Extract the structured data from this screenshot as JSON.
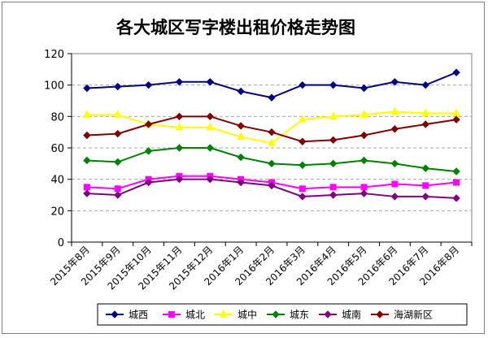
{
  "chart_data": {
    "type": "line",
    "title": "各大城区写字楼出租价格走势图",
    "xlabel": "",
    "ylabel": "",
    "ylim": [
      0,
      120
    ],
    "yticks": [
      0,
      20,
      40,
      60,
      80,
      100,
      120
    ],
    "grid": true,
    "legend_position": "bottom",
    "categories": [
      "2015年8月",
      "2015年9月",
      "2015年10月",
      "2015年11月",
      "2015年12月",
      "2016年1月",
      "2016年2月",
      "2016年3月",
      "2016年4月",
      "2016年5月",
      "2016年6月",
      "2016年7月",
      "2016年8月"
    ],
    "series": [
      {
        "name": "城西",
        "color": "#000080",
        "marker": "diamond",
        "values": [
          98,
          99,
          100,
          102,
          102,
          96,
          92,
          100,
          100,
          98,
          102,
          100,
          108
        ]
      },
      {
        "name": "城北",
        "color": "#ff00ff",
        "marker": "square",
        "values": [
          35,
          34,
          40,
          42,
          42,
          40,
          38,
          34,
          35,
          35,
          37,
          36,
          38
        ]
      },
      {
        "name": "城中",
        "color": "#ffff00",
        "marker": "triangle",
        "values": [
          81,
          81,
          75,
          73,
          73,
          67,
          63,
          78,
          80,
          81,
          83,
          82,
          82
        ]
      },
      {
        "name": "城东",
        "color": "#008000",
        "marker": "diamond",
        "values": [
          52,
          51,
          58,
          60,
          60,
          54,
          50,
          49,
          50,
          52,
          50,
          47,
          45
        ]
      },
      {
        "name": "城南",
        "color": "#800080",
        "marker": "diamond",
        "values": [
          31,
          30,
          38,
          40,
          40,
          38,
          36,
          29,
          30,
          31,
          29,
          29,
          28
        ]
      },
      {
        "name": "海湖新区",
        "color": "#800000",
        "marker": "diamond",
        "values": [
          68,
          69,
          75,
          80,
          80,
          74,
          70,
          64,
          65,
          68,
          72,
          75,
          78
        ]
      }
    ]
  }
}
